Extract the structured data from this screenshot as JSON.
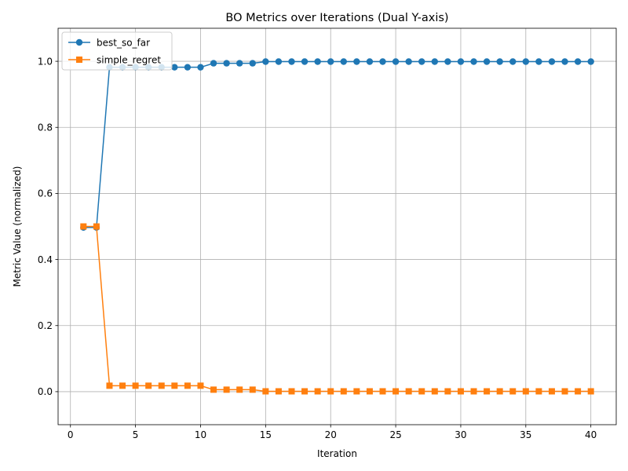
{
  "chart_data": {
    "type": "line",
    "title": "BO Metrics over Iterations (Dual Y-axis)",
    "xlabel": "Iteration",
    "ylabel": "Metric Value (normalized)",
    "xlim": [
      -0.95,
      41.95
    ],
    "ylim": [
      -0.1,
      1.1
    ],
    "xticks": [
      0,
      5,
      10,
      15,
      20,
      25,
      30,
      35,
      40
    ],
    "yticks": [
      0.0,
      0.2,
      0.4,
      0.6,
      0.8,
      1.0
    ],
    "xtick_labels": [
      "0",
      "5",
      "10",
      "15",
      "20",
      "25",
      "30",
      "35",
      "40"
    ],
    "ytick_labels": [
      "0.0",
      "0.2",
      "0.4",
      "0.6",
      "0.8",
      "1.0"
    ],
    "grid": true,
    "legend_position": "top-left",
    "x": [
      1,
      2,
      3,
      4,
      5,
      6,
      7,
      8,
      9,
      10,
      11,
      12,
      13,
      14,
      15,
      16,
      17,
      18,
      19,
      20,
      21,
      22,
      23,
      24,
      25,
      26,
      27,
      28,
      29,
      30,
      31,
      32,
      33,
      34,
      35,
      36,
      37,
      38,
      39,
      40
    ],
    "series": [
      {
        "name": "best_so_far",
        "color": "#1f77b4",
        "marker": "circle",
        "values": [
          0.497,
          0.497,
          0.982,
          0.982,
          0.982,
          0.982,
          0.982,
          0.982,
          0.982,
          0.982,
          0.994,
          0.994,
          0.994,
          0.994,
          0.999,
          0.999,
          0.999,
          0.999,
          0.999,
          0.999,
          0.999,
          0.999,
          0.999,
          0.999,
          0.999,
          0.999,
          0.999,
          0.999,
          0.999,
          0.999,
          0.999,
          0.999,
          0.999,
          0.999,
          0.999,
          0.999,
          0.999,
          0.999,
          0.999,
          0.999
        ]
      },
      {
        "name": "simple_regret",
        "color": "#ff7f0e",
        "marker": "square",
        "values": [
          0.5,
          0.5,
          0.018,
          0.018,
          0.018,
          0.018,
          0.018,
          0.018,
          0.018,
          0.018,
          0.006,
          0.006,
          0.006,
          0.006,
          0.001,
          0.001,
          0.001,
          0.001,
          0.001,
          0.001,
          0.001,
          0.001,
          0.001,
          0.001,
          0.001,
          0.001,
          0.001,
          0.001,
          0.001,
          0.001,
          0.001,
          0.001,
          0.001,
          0.001,
          0.001,
          0.001,
          0.001,
          0.001,
          0.001,
          0.001
        ]
      }
    ]
  }
}
